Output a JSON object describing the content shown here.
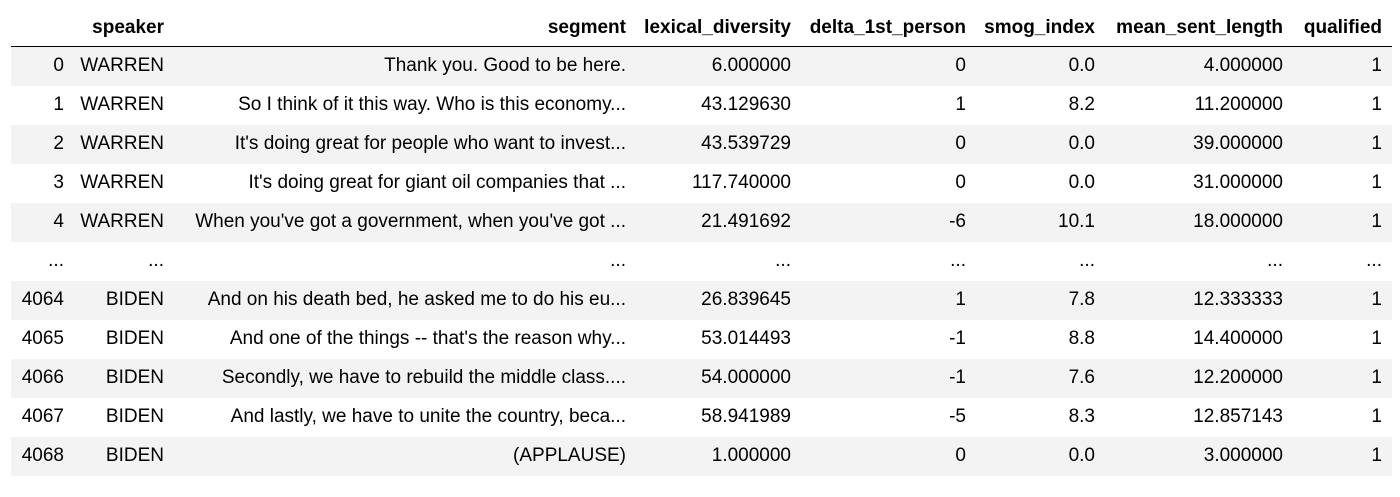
{
  "columns": [
    "",
    "speaker",
    "segment",
    "lexical_diversity",
    "delta_1st_person",
    "smog_index",
    "mean_sent_length",
    "qualified"
  ],
  "rows": [
    [
      "0",
      "WARREN",
      "Thank you. Good to be here.",
      "6.000000",
      "0",
      "0.0",
      "4.000000",
      "1"
    ],
    [
      "1",
      "WARREN",
      "So I think of it this way. Who is this economy...",
      "43.129630",
      "1",
      "8.2",
      "11.200000",
      "1"
    ],
    [
      "2",
      "WARREN",
      "It's doing great for people who want to invest...",
      "43.539729",
      "0",
      "0.0",
      "39.000000",
      "1"
    ],
    [
      "3",
      "WARREN",
      "It's doing great for giant oil companies that ...",
      "117.740000",
      "0",
      "0.0",
      "31.000000",
      "1"
    ],
    [
      "4",
      "WARREN",
      "When you've got a government, when you've got ...",
      "21.491692",
      "-6",
      "10.1",
      "18.000000",
      "1"
    ],
    [
      "...",
      "...",
      "...",
      "...",
      "...",
      "...",
      "...",
      "..."
    ],
    [
      "4064",
      "BIDEN",
      "And on his death bed, he asked me to do his eu...",
      "26.839645",
      "1",
      "7.8",
      "12.333333",
      "1"
    ],
    [
      "4065",
      "BIDEN",
      "And one of the things -- that's the reason why...",
      "53.014493",
      "-1",
      "8.8",
      "14.400000",
      "1"
    ],
    [
      "4066",
      "BIDEN",
      "Secondly, we have to rebuild the middle class....",
      "54.000000",
      "-1",
      "7.6",
      "12.200000",
      "1"
    ],
    [
      "4067",
      "BIDEN",
      "And lastly, we have to unite the country, beca...",
      "58.941989",
      "-5",
      "8.3",
      "12.857143",
      "1"
    ],
    [
      "4068",
      "BIDEN",
      "(APPLAUSE)",
      "1.000000",
      "0",
      "0.0",
      "3.000000",
      "1"
    ]
  ]
}
